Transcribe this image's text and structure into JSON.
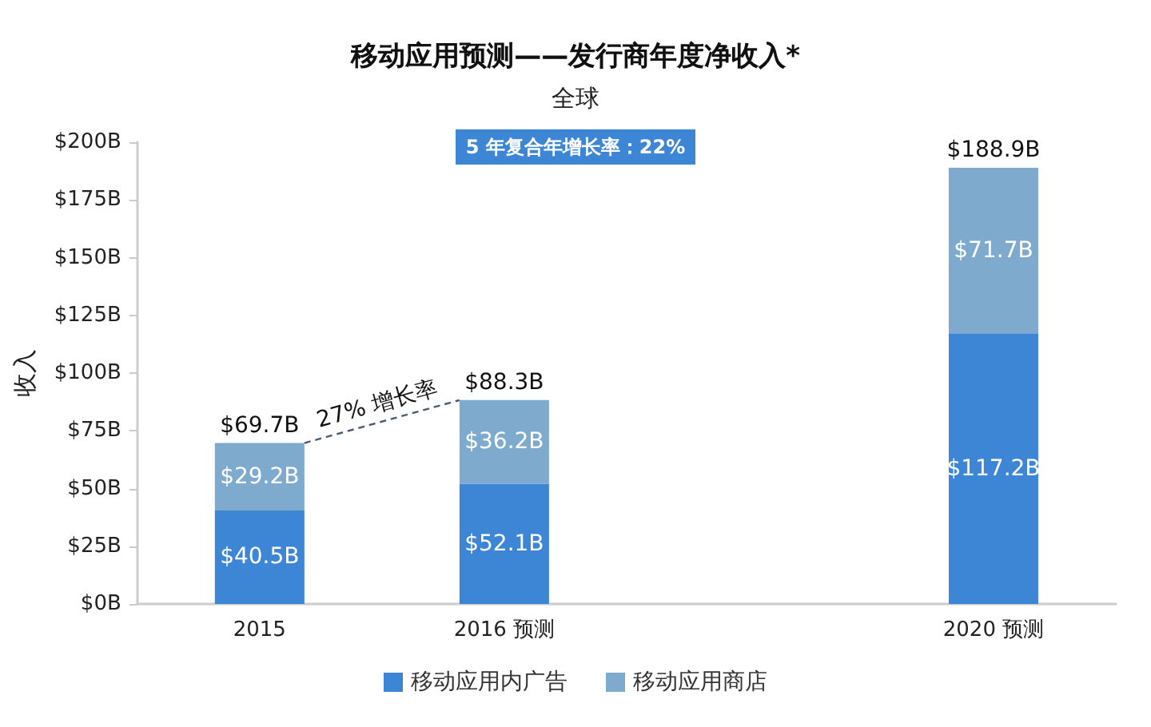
{
  "chart_data": {
    "type": "bar",
    "title": "移动应用预测——发行商年度净收入*",
    "subtitle": "全球",
    "ylabel": "收入",
    "categories": [
      "2015",
      "2016 预测",
      null,
      "2020 预测"
    ],
    "stacked": true,
    "series": [
      {
        "name": "移动应用内广告",
        "color": "#3d86d5",
        "values": [
          40.5,
          52.1,
          null,
          117.2
        ],
        "value_labels": [
          "$40.5B",
          "$52.1B",
          null,
          "$117.2B"
        ]
      },
      {
        "name": "移动应用商店",
        "color": "#7eabcd",
        "values": [
          29.2,
          36.2,
          null,
          71.7
        ],
        "value_labels": [
          "$29.2B",
          "$36.2B",
          null,
          "$71.7B"
        ]
      }
    ],
    "totals": [
      "$69.7B",
      "$88.3B",
      null,
      "$188.9B"
    ],
    "ylim": [
      0,
      200
    ],
    "yticks": [
      {
        "value": 0,
        "label": "$0B"
      },
      {
        "value": 25,
        "label": "$25B"
      },
      {
        "value": 50,
        "label": "$50B"
      },
      {
        "value": 75,
        "label": "$75B"
      },
      {
        "value": 100,
        "label": "$100B"
      },
      {
        "value": 125,
        "label": "$125B"
      },
      {
        "value": 150,
        "label": "$150B"
      },
      {
        "value": 175,
        "label": "$175B"
      },
      {
        "value": 200,
        "label": "$200B"
      }
    ],
    "grid": false,
    "legend": "bottom",
    "annotations": [
      "5 年复合年增长率：22%",
      "27% 增长率"
    ]
  }
}
